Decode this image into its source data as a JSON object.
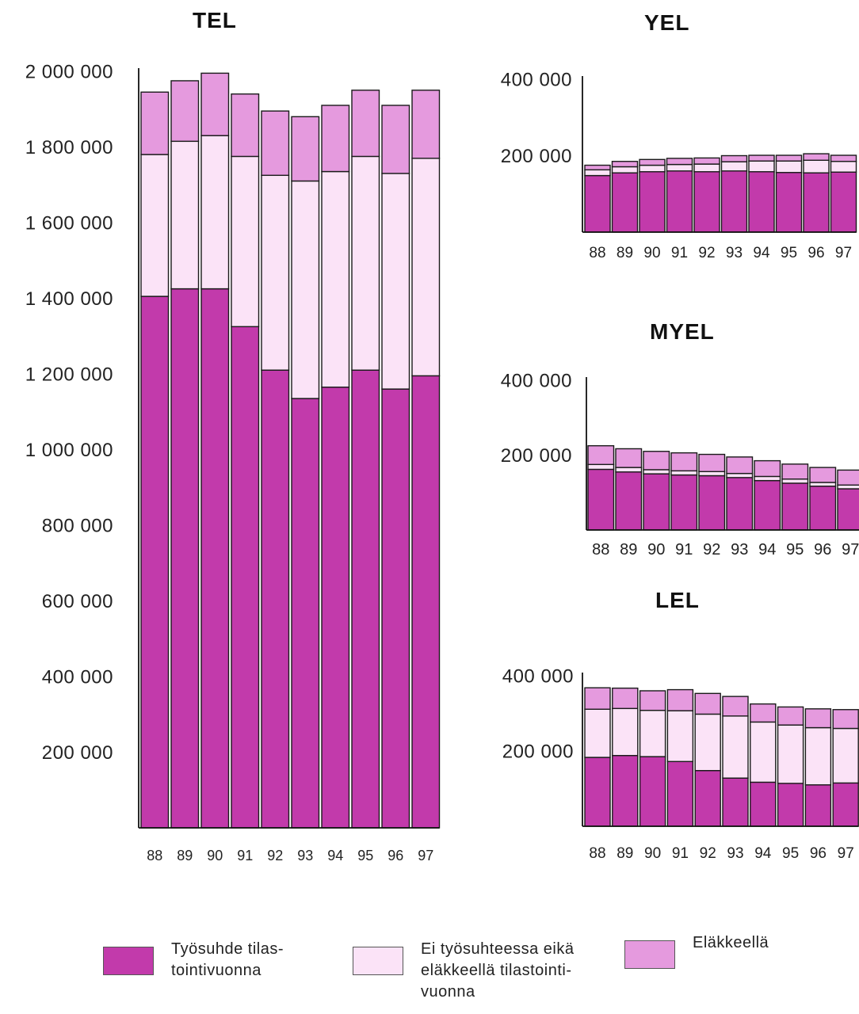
{
  "colors": {
    "employed": "#c23aab",
    "neither": "#fbe3f7",
    "retired": "#e59ade",
    "stroke": "#1a1a1a"
  },
  "chart_data": [
    {
      "type": "bar",
      "stacked": true,
      "title": "TEL",
      "categories": [
        "88",
        "89",
        "90",
        "91",
        "92",
        "93",
        "94",
        "95",
        "96",
        "97"
      ],
      "ylim": [
        0,
        2000000
      ],
      "y_ticks": [
        200000,
        400000,
        600000,
        800000,
        1000000,
        1200000,
        1400000,
        1600000,
        1800000,
        2000000
      ],
      "y_tick_labels": [
        "200 000",
        "400 000",
        "600 000",
        "800 000",
        "1 000 000",
        "1 200 000",
        "1 400 000",
        "1 600 000",
        "1 800 000",
        "2 000 000"
      ],
      "series": [
        {
          "name": "Työsuhde tilastointivuonna",
          "values": [
            1405000,
            1425000,
            1425000,
            1325000,
            1210000,
            1135000,
            1165000,
            1210000,
            1160000,
            1195000
          ]
        },
        {
          "name": "Ei työsuhteessa eikä eläkkeellä tilastointivuonna",
          "values": [
            375000,
            390000,
            405000,
            450000,
            515000,
            575000,
            570000,
            565000,
            570000,
            575000
          ]
        },
        {
          "name": "Eläkkeellä",
          "values": [
            165000,
            160000,
            165000,
            165000,
            170000,
            170000,
            175000,
            175000,
            180000,
            180000
          ]
        }
      ]
    },
    {
      "type": "bar",
      "stacked": true,
      "title": "YEL",
      "categories": [
        "88",
        "89",
        "90",
        "91",
        "92",
        "93",
        "94",
        "95",
        "96",
        "97"
      ],
      "ylim": [
        0,
        400000
      ],
      "y_ticks": [
        200000,
        400000
      ],
      "y_tick_labels": [
        "200 000",
        "400 000"
      ],
      "series": [
        {
          "name": "Työsuhde tilastointivuonna",
          "values": [
            148000,
            155000,
            158000,
            160000,
            158000,
            160000,
            158000,
            156000,
            155000,
            157000
          ]
        },
        {
          "name": "Ei työsuhteessa eikä eläkkeellä tilastointivuonna",
          "values": [
            15000,
            16000,
            17000,
            17000,
            20000,
            24000,
            28000,
            30000,
            33000,
            28000
          ]
        },
        {
          "name": "Eläkkeellä",
          "values": [
            12000,
            14000,
            15000,
            16000,
            16000,
            16000,
            15000,
            15000,
            17000,
            16000
          ]
        }
      ]
    },
    {
      "type": "bar",
      "stacked": true,
      "title": "MYEL",
      "categories": [
        "88",
        "89",
        "90",
        "91",
        "92",
        "93",
        "94",
        "95",
        "96",
        "97"
      ],
      "ylim": [
        0,
        400000
      ],
      "y_ticks": [
        200000,
        400000
      ],
      "y_tick_labels": [
        "200 000",
        "400 000"
      ],
      "series": [
        {
          "name": "Työsuhde tilastointivuonna",
          "values": [
            162000,
            155000,
            150000,
            147000,
            145000,
            140000,
            132000,
            125000,
            117000,
            110000
          ]
        },
        {
          "name": "Ei työsuhteessa eikä eläkkeellä tilastointivuonna",
          "values": [
            13000,
            12000,
            11000,
            11000,
            11000,
            11000,
            11000,
            11000,
            10000,
            10000
          ]
        },
        {
          "name": "Eläkkeellä",
          "values": [
            50000,
            50000,
            49000,
            48000,
            46000,
            44000,
            42000,
            40000,
            40000,
            40000
          ]
        }
      ]
    },
    {
      "type": "bar",
      "stacked": true,
      "title": "LEL",
      "categories": [
        "88",
        "89",
        "90",
        "91",
        "92",
        "93",
        "94",
        "95",
        "96",
        "97"
      ],
      "ylim": [
        0,
        400000
      ],
      "y_ticks": [
        200000,
        400000
      ],
      "y_tick_labels": [
        "200 000",
        "400 000"
      ],
      "series": [
        {
          "name": "Työsuhde tilastointivuonna",
          "values": [
            183000,
            188000,
            185000,
            172000,
            148000,
            128000,
            117000,
            114000,
            110000,
            115000
          ]
        },
        {
          "name": "Ei työsuhteessa eikä eläkkeellä tilastointivuonna",
          "values": [
            128000,
            125000,
            123000,
            135000,
            150000,
            165000,
            160000,
            155000,
            152000,
            145000
          ]
        },
        {
          "name": "Eläkkeellä",
          "values": [
            57000,
            54000,
            52000,
            56000,
            55000,
            52000,
            48000,
            48000,
            50000,
            50000
          ]
        }
      ]
    }
  ],
  "legend": [
    {
      "label": "Työsuhde tilas-\ntointivuonna",
      "series": "employed"
    },
    {
      "label": "Ei työsuhteessa eikä\neläkkeellä tilastointi-\nvuonna",
      "series": "neither"
    },
    {
      "label": "Eläkkeellä",
      "series": "retired"
    }
  ]
}
